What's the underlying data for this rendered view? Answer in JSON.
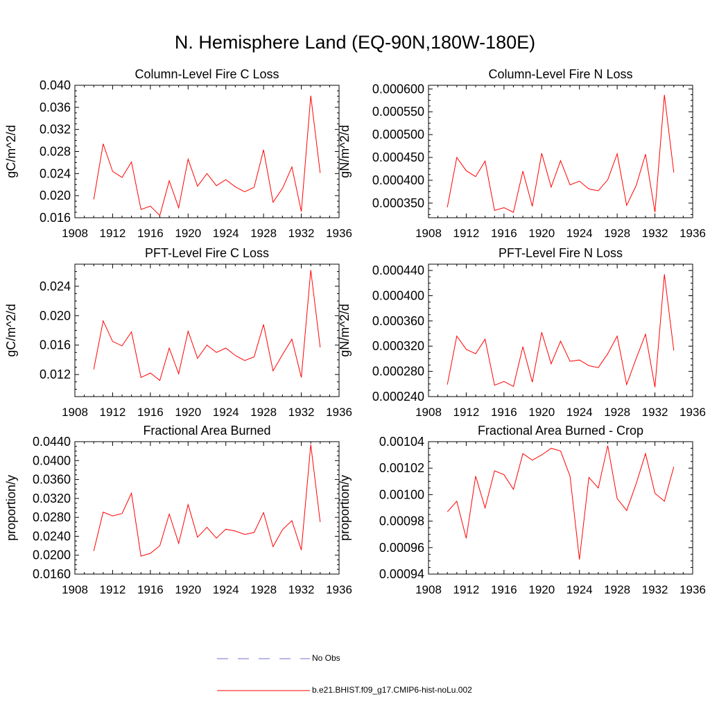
{
  "title": "N. Hemisphere Land (EQ-90N,180W-180E)",
  "legend": {
    "items": [
      {
        "label": "No Obs",
        "color": "#6f6fd6",
        "style": "dashed"
      },
      {
        "label": "b.e21.BHIST.f09_g17.CMIP6-hist-noLu.002",
        "color": "#ff0000",
        "style": "solid"
      }
    ]
  },
  "chart_data": [
    {
      "type": "line",
      "title": "Column-Level Fire C Loss",
      "ylabel": "gC/m^2/d",
      "xlim": [
        1908,
        1936
      ],
      "xticks": [
        "1908",
        "1912",
        "1916",
        "1920",
        "1924",
        "1928",
        "1932",
        "1936"
      ],
      "ylim": [
        0.016,
        0.04
      ],
      "yticks": [
        "0.016",
        "0.020",
        "0.024",
        "0.028",
        "0.032",
        "0.036",
        "0.040"
      ],
      "x": [
        1910,
        1911,
        1912,
        1913,
        1914,
        1915,
        1916,
        1917,
        1918,
        1919,
        1920,
        1921,
        1922,
        1923,
        1924,
        1925,
        1926,
        1927,
        1928,
        1929,
        1930,
        1931,
        1932,
        1933,
        1934
      ],
      "series": [
        {
          "color": "#ff0000",
          "values": [
            0.0193,
            0.0294,
            0.0244,
            0.0233,
            0.0261,
            0.0175,
            0.0181,
            0.0164,
            0.0227,
            0.0178,
            0.0266,
            0.0217,
            0.024,
            0.0218,
            0.0229,
            0.0216,
            0.0207,
            0.0215,
            0.0283,
            0.0188,
            0.0213,
            0.0252,
            0.0171,
            0.0381,
            0.0241
          ]
        }
      ]
    },
    {
      "type": "line",
      "title": "Column-Level Fire N Loss",
      "ylabel": "gN/m^2/d",
      "xlim": [
        1908,
        1936
      ],
      "xticks": [
        "1908",
        "1912",
        "1916",
        "1920",
        "1924",
        "1928",
        "1932",
        "1936"
      ],
      "ylim": [
        0.000318,
        0.000608
      ],
      "yticks": [
        "0.000350",
        "0.000400",
        "0.000450",
        "0.000500",
        "0.000550",
        "0.000600"
      ],
      "x": [
        1910,
        1911,
        1912,
        1913,
        1914,
        1915,
        1916,
        1917,
        1918,
        1919,
        1920,
        1921,
        1922,
        1923,
        1924,
        1925,
        1926,
        1927,
        1928,
        1929,
        1930,
        1931,
        1932,
        1933,
        1934
      ],
      "series": [
        {
          "color": "#ff0000",
          "values": [
            0.000341,
            0.00045,
            0.000421,
            0.000408,
            0.000442,
            0.000334,
            0.00034,
            0.00033,
            0.00042,
            0.000343,
            0.000459,
            0.000385,
            0.000443,
            0.00039,
            0.000398,
            0.000381,
            0.000377,
            0.000401,
            0.000458,
            0.000345,
            0.000388,
            0.000457,
            0.00033,
            0.000587,
            0.000417
          ]
        }
      ]
    },
    {
      "type": "line",
      "title": "PFT-Level Fire C Loss",
      "ylabel": "gC/m^2/d",
      "xlim": [
        1908,
        1936
      ],
      "xticks": [
        "1908",
        "1912",
        "1916",
        "1920",
        "1924",
        "1928",
        "1932",
        "1936"
      ],
      "ylim": [
        0.009,
        0.027
      ],
      "yticks": [
        "0.012",
        "0.016",
        "0.020",
        "0.024"
      ],
      "x": [
        1910,
        1911,
        1912,
        1913,
        1914,
        1915,
        1916,
        1917,
        1918,
        1919,
        1920,
        1921,
        1922,
        1923,
        1924,
        1925,
        1926,
        1927,
        1928,
        1929,
        1930,
        1931,
        1932,
        1933,
        1934
      ],
      "series": [
        {
          "color": "#ff0000",
          "values": [
            0.0127,
            0.0193,
            0.0165,
            0.0159,
            0.0178,
            0.0116,
            0.0122,
            0.0112,
            0.0156,
            0.0121,
            0.0179,
            0.0142,
            0.016,
            0.015,
            0.0156,
            0.0146,
            0.0139,
            0.0144,
            0.0188,
            0.0125,
            0.0147,
            0.0168,
            0.0116,
            0.0262,
            0.0157
          ]
        }
      ]
    },
    {
      "type": "line",
      "title": "PFT-Level Fire N Loss",
      "ylabel": "gN/m^2/d",
      "xlim": [
        1908,
        1936
      ],
      "xticks": [
        "1908",
        "1912",
        "1916",
        "1920",
        "1924",
        "1928",
        "1932",
        "1936"
      ],
      "ylim": [
        0.00024,
        0.00045
      ],
      "yticks": [
        "0.000240",
        "0.000280",
        "0.000320",
        "0.000360",
        "0.000400",
        "0.000440"
      ],
      "x": [
        1910,
        1911,
        1912,
        1913,
        1914,
        1915,
        1916,
        1917,
        1918,
        1919,
        1920,
        1921,
        1922,
        1923,
        1924,
        1925,
        1926,
        1927,
        1928,
        1929,
        1930,
        1931,
        1932,
        1933,
        1934
      ],
      "series": [
        {
          "color": "#ff0000",
          "values": [
            0.000259,
            0.000336,
            0.000315,
            0.000308,
            0.000331,
            0.000258,
            0.000264,
            0.000256,
            0.000319,
            0.000263,
            0.000342,
            0.000292,
            0.000328,
            0.000296,
            0.000298,
            0.000289,
            0.000286,
            0.000308,
            0.000336,
            0.000259,
            0.0003,
            0.000339,
            0.000255,
            0.000434,
            0.000313
          ]
        }
      ]
    },
    {
      "type": "line",
      "title": "Fractional Area Burned",
      "ylabel": "proportion/y",
      "xlim": [
        1908,
        1936
      ],
      "xticks": [
        "1908",
        "1912",
        "1916",
        "1920",
        "1924",
        "1928",
        "1932",
        "1936"
      ],
      "ylim": [
        0.016,
        0.044
      ],
      "yticks": [
        "0.0160",
        "0.0200",
        "0.0240",
        "0.0280",
        "0.0320",
        "0.0360",
        "0.0400",
        "0.0440"
      ],
      "x": [
        1910,
        1911,
        1912,
        1913,
        1914,
        1915,
        1916,
        1917,
        1918,
        1919,
        1920,
        1921,
        1922,
        1923,
        1924,
        1925,
        1926,
        1927,
        1928,
        1929,
        1930,
        1931,
        1932,
        1933,
        1934
      ],
      "series": [
        {
          "color": "#ff0000",
          "values": [
            0.0209,
            0.0291,
            0.0283,
            0.0288,
            0.0331,
            0.0198,
            0.0204,
            0.022,
            0.0287,
            0.0225,
            0.0307,
            0.0238,
            0.0259,
            0.0236,
            0.0255,
            0.0251,
            0.0244,
            0.0248,
            0.029,
            0.0218,
            0.0254,
            0.0273,
            0.0211,
            0.0434,
            0.027
          ]
        }
      ]
    },
    {
      "type": "line",
      "title": "Fractional Area Burned - Crop",
      "ylabel": "proportion/y",
      "xlim": [
        1908,
        1936
      ],
      "xticks": [
        "1908",
        "1912",
        "1916",
        "1920",
        "1924",
        "1928",
        "1932",
        "1936"
      ],
      "ylim": [
        0.00094,
        0.00104
      ],
      "yticks": [
        "0.00094",
        "0.00096",
        "0.00098",
        "0.00100",
        "0.00102",
        "0.00104"
      ],
      "x": [
        1910,
        1911,
        1912,
        1913,
        1914,
        1915,
        1916,
        1917,
        1918,
        1919,
        1920,
        1921,
        1922,
        1923,
        1924,
        1925,
        1926,
        1927,
        1928,
        1929,
        1930,
        1931,
        1932,
        1933,
        1934
      ],
      "series": [
        {
          "color": "#ff0000",
          "values": [
            0.000987,
            0.000995,
            0.000967,
            0.001014,
            0.00099,
            0.001018,
            0.001015,
            0.001004,
            0.001031,
            0.001026,
            0.00103,
            0.001035,
            0.001033,
            0.001014,
            0.000951,
            0.001013,
            0.001005,
            0.001037,
            0.000997,
            0.000988,
            0.001008,
            0.001031,
            0.001001,
            0.000995,
            0.001021
          ]
        }
      ]
    }
  ]
}
